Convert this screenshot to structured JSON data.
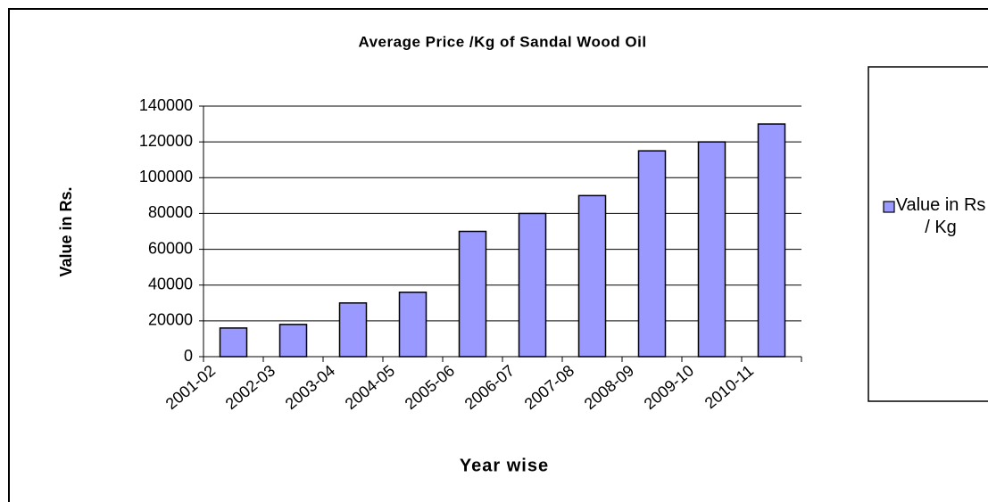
{
  "chart_data": {
    "type": "bar",
    "title": "Average  Price /Kg of Sandal Wood Oil",
    "x_label": "Year  wise",
    "y_label": "Value in Rs.",
    "categories": [
      "2001-02",
      "2002-03",
      "2003-04",
      "2004-05",
      "2005-06",
      "2006-07",
      "2007-08",
      "2008-09",
      "2009-10",
      "2010-11"
    ],
    "series": [
      {
        "name": "Value in Rs / Kg",
        "color": "#9999ff",
        "values": [
          16000,
          18000,
          30000,
          36000,
          70000,
          80000,
          90000,
          115000,
          120000,
          130000
        ]
      }
    ],
    "ylim": [
      0,
      140000
    ],
    "yticks": [
      0,
      20000,
      40000,
      60000,
      80000,
      100000,
      120000,
      140000
    ],
    "grid": true,
    "legend": "right"
  }
}
